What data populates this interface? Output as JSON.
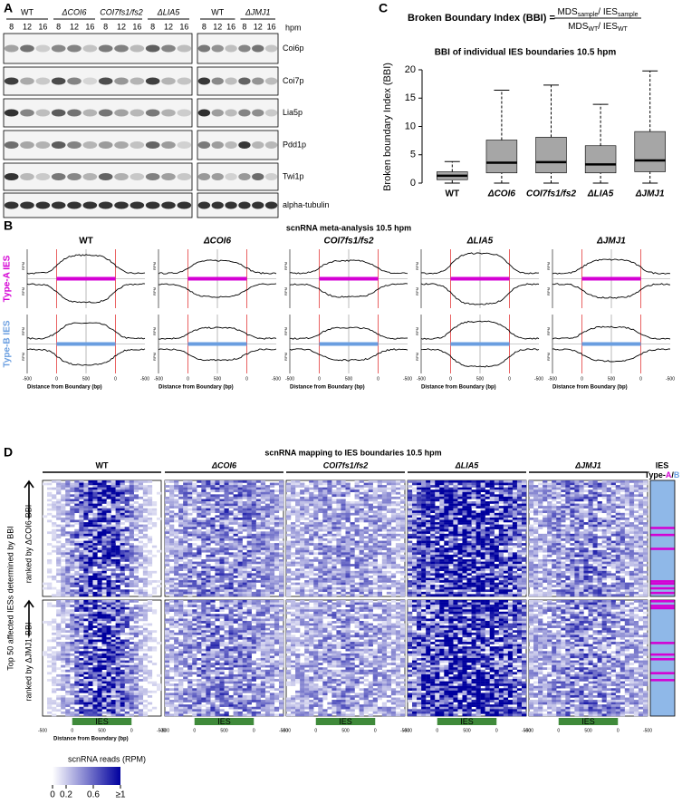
{
  "panel_labels": [
    "A",
    "B",
    "C",
    "D"
  ],
  "blot": {
    "hpm": "hpm",
    "left_groups": [
      "WT",
      "ΔCOI6",
      "COI7fs1/fs2",
      "ΔLIA5"
    ],
    "right_groups": [
      "WT",
      "ΔJMJ1"
    ],
    "timepoints": [
      "8",
      "12",
      "16"
    ],
    "rows": [
      "Coi6p",
      "Coi7p",
      "Lia5p",
      "Pdd1p",
      "Twi1p",
      "alpha-tubulin"
    ]
  },
  "chart_data": {
    "type": "box",
    "formula": {
      "lhs": "Broken Boundary Index (BBI) =",
      "numerator": [
        "MDS",
        "sample",
        "/ IES",
        "sample"
      ],
      "denominator": [
        "MDS",
        "WT",
        "/ IES",
        "WT"
      ]
    },
    "title": "BBI of individual IES boundaries 10.5 hpm",
    "ylabel": "Broken boundary Index (BBI)",
    "categories": [
      "WT",
      "ΔCOI6",
      "COI7fs1/fs2",
      "ΔLIA5",
      "ΔJMJ1"
    ],
    "color": "#a6a6a6",
    "min": [
      0,
      0,
      0,
      0,
      0
    ],
    "q1": [
      0.6,
      1.8,
      1.8,
      1.8,
      2.0
    ],
    "median": [
      1.3,
      3.6,
      3.7,
      3.3,
      4.0
    ],
    "q3": [
      2.0,
      7.6,
      8.1,
      6.6,
      9.1
    ],
    "max": [
      3.8,
      16.4,
      17.3,
      13.9,
      19.8
    ],
    "ylim": [
      0,
      20
    ],
    "yticks": [
      0,
      5,
      10,
      15,
      20
    ]
  },
  "meta": {
    "title": "scnRNA meta-analysis 10.5 hpm",
    "columns": [
      "WT",
      "ΔCOI6",
      "COI7fs1/fs2",
      "ΔLIA5",
      "ΔJMJ1"
    ],
    "rows": [
      "Type-A IES",
      "Type-B IES"
    ],
    "ylabel": "RPM",
    "xlabel": "Distance from Boundary (bp)",
    "xtick_labels": [
      "-500",
      "0",
      "500",
      "0",
      "-500"
    ]
  },
  "heatmap": {
    "title": "scnRNA mapping to IES boundaries 10.5 hpm",
    "columns": [
      "WT",
      "ΔCOI6",
      "COI7fs1/fs2",
      "ΔLIA5",
      "ΔJMJ1"
    ],
    "ies_header": "IES",
    "type_prefix": "Type-",
    "type_a": "A",
    "sep": "/",
    "type_b": "B",
    "left_label": "Top 50 affected IESs determined by BBI",
    "rank_labels": [
      "ranked by ΔCOI6-BBI",
      "ranked by ΔJMJ1-BBI"
    ],
    "bar_label": "IES",
    "xlabel": "Distance from Boundary (bp)",
    "xtick_labels": [
      "-500",
      "0",
      "500",
      "0",
      "-500"
    ],
    "legend": {
      "title": "scnRNA reads (RPM)",
      "ticks": [
        0,
        0.2,
        0.6,
        {
          "value": 1,
          "label": "≥1"
        }
      ]
    }
  }
}
